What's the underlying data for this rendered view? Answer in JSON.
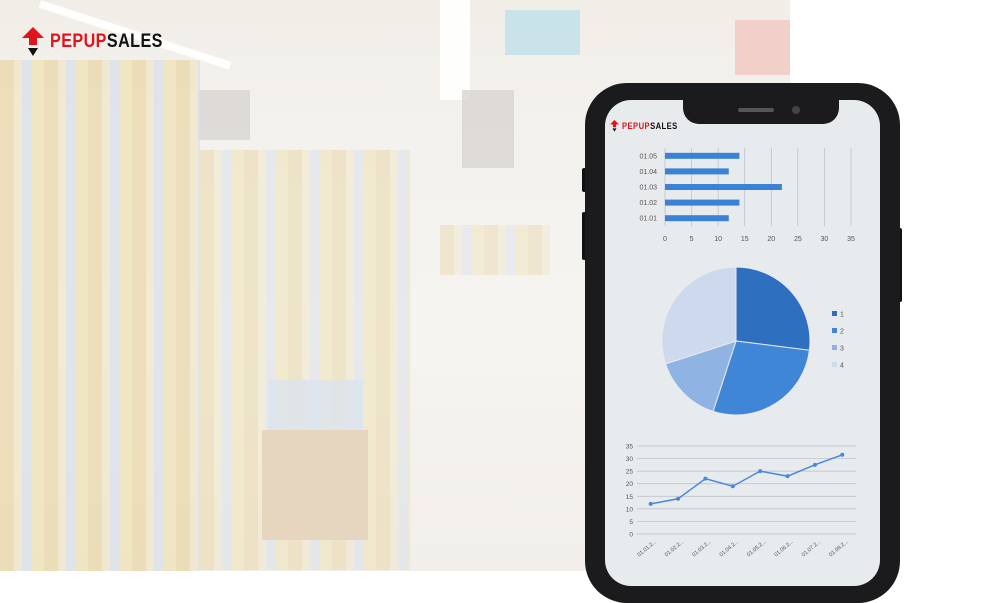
{
  "brand": {
    "part1": "PEPUP",
    "part2": "SALES",
    "color_red": "#e0141c"
  },
  "phone": {
    "brand": {
      "part1": "PEPUP",
      "part2": "SALES"
    }
  },
  "chart_data": [
    {
      "type": "bar",
      "orientation": "horizontal",
      "categories": [
        "01.01",
        "01.02",
        "01.03",
        "01.04",
        "01.05"
      ],
      "values": [
        12,
        14,
        22,
        12,
        14
      ],
      "xlim": [
        0,
        35
      ],
      "xticks": [
        0,
        5,
        10,
        15,
        20,
        25,
        30,
        35
      ],
      "grid": true,
      "color": "#3b82d6"
    },
    {
      "type": "pie",
      "categories": [
        "1",
        "2",
        "3",
        "4"
      ],
      "values": [
        27,
        28,
        15,
        30
      ],
      "colors": [
        "#2f6fc0",
        "#3f86d6",
        "#8fb3e3",
        "#cdd9ec"
      ],
      "legend": "right"
    },
    {
      "type": "line",
      "categories": [
        "01.01.2...",
        "01.02.2...",
        "01.03.2...",
        "01.04.2...",
        "01.05.2...",
        "01.06.2...",
        "01.07.2...",
        "01.08.2..."
      ],
      "values": [
        12,
        14,
        22,
        19,
        25,
        23,
        27.5,
        31.5
      ],
      "ylim": [
        0,
        35
      ],
      "yticks": [
        0,
        5,
        10,
        15,
        20,
        25,
        30,
        35
      ],
      "grid": true,
      "color": "#4a88d8"
    }
  ]
}
